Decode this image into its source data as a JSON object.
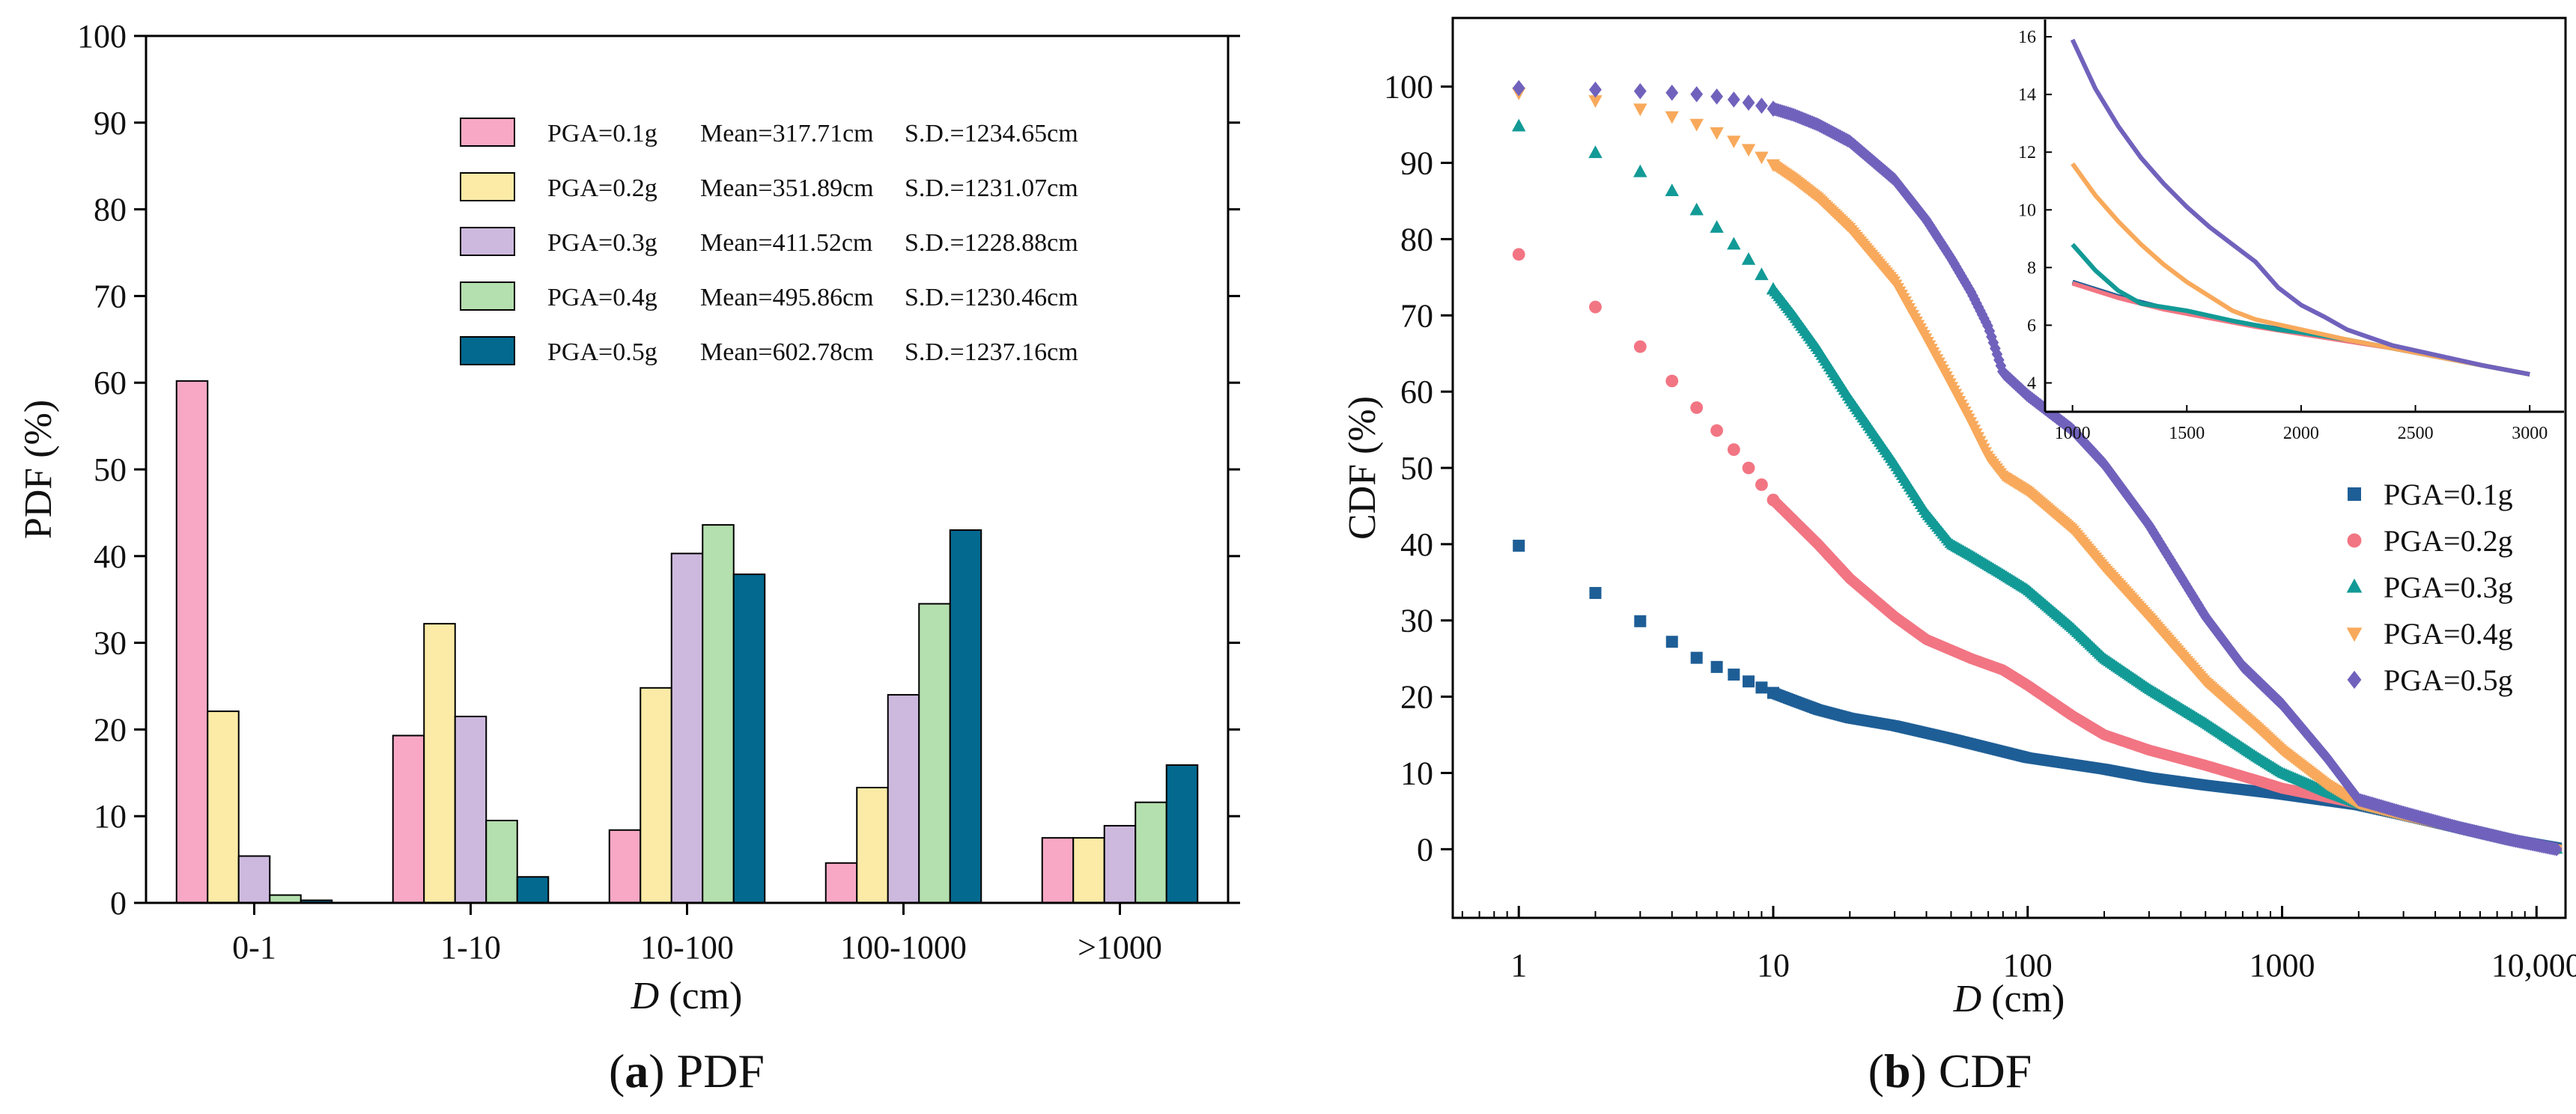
{
  "chart_data": [
    {
      "type": "bar",
      "panel": "a",
      "caption_letter": "a",
      "caption_text": "PDF",
      "ylabel": "PDF (%)",
      "xlabel_var": "D",
      "xlabel_unit": "(cm)",
      "ylim": [
        0,
        100
      ],
      "yticks": [
        0,
        10,
        20,
        30,
        40,
        50,
        60,
        70,
        80,
        90,
        100
      ],
      "categories": [
        "0-1",
        "1-10",
        "10-100",
        "100-1000",
        ">1000"
      ],
      "series": [
        {
          "name": "PGA=0.1g",
          "mean": "Mean=317.71cm",
          "sd": "S.D.=1234.65cm",
          "color": "#F8A8C4",
          "values": [
            60.2,
            19.3,
            8.4,
            4.6,
            7.5
          ]
        },
        {
          "name": "PGA=0.2g",
          "mean": "Mean=351.89cm",
          "sd": "S.D.=1231.07cm",
          "color": "#FBEBA6",
          "values": [
            22.1,
            32.2,
            24.8,
            13.3,
            7.5
          ]
        },
        {
          "name": "PGA=0.3g",
          "mean": "Mean=411.52cm",
          "sd": "S.D.=1228.88cm",
          "color": "#CDB9DE",
          "values": [
            5.4,
            21.5,
            40.3,
            24.0,
            8.9
          ]
        },
        {
          "name": "PGA=0.4g",
          "mean": "Mean=495.86cm",
          "sd": "S.D.=1230.46cm",
          "color": "#B4DFAE",
          "values": [
            0.9,
            9.5,
            43.6,
            34.5,
            11.6
          ]
        },
        {
          "name": "PGA=0.5g",
          "mean": "Mean=602.78cm",
          "sd": "S.D.=1237.16cm",
          "color": "#03698F",
          "values": [
            0.3,
            3.0,
            37.9,
            43.0,
            15.9
          ]
        }
      ]
    },
    {
      "type": "scatter",
      "panel": "b",
      "caption_letter": "b",
      "caption_text": "CDF",
      "ylabel": "CDF (%)",
      "xlabel_var": "D",
      "xlabel_unit": "(cm)",
      "xscale": "log",
      "xlim": [
        0.55,
        13000
      ],
      "ylim": [
        -9,
        109
      ],
      "yticks": [
        0,
        10,
        20,
        30,
        40,
        50,
        60,
        70,
        80,
        90,
        100
      ],
      "xticks": [
        {
          "value": 1,
          "label": "1"
        },
        {
          "value": 10,
          "label": "10"
        },
        {
          "value": 100,
          "label": "100"
        },
        {
          "value": 1000,
          "label": "1000"
        },
        {
          "value": 10000,
          "label": "10,000"
        }
      ],
      "legend_position": "lower-right",
      "series": [
        {
          "name": "PGA=0.1g",
          "marker": "square",
          "color": "#1E5E96",
          "discrete": [
            [
              1,
              39.8
            ],
            [
              2,
              33.6
            ],
            [
              3,
              29.9
            ],
            [
              4,
              27.2
            ],
            [
              5,
              25.1
            ],
            [
              6,
              23.9
            ],
            [
              7,
              22.9
            ],
            [
              8,
              22.0
            ],
            [
              9,
              21.2
            ],
            [
              10,
              20.5
            ]
          ],
          "curve": [
            [
              10,
              20.5
            ],
            [
              12,
              19.5
            ],
            [
              15,
              18.3
            ],
            [
              20,
              17.2
            ],
            [
              30,
              16.2
            ],
            [
              50,
              14.5
            ],
            [
              100,
              12.0
            ],
            [
              200,
              10.5
            ],
            [
              300,
              9.4
            ],
            [
              500,
              8.4
            ],
            [
              1000,
              7.2
            ],
            [
              2000,
              5.8
            ],
            [
              3000,
              4.5
            ],
            [
              5000,
              2.8
            ],
            [
              8000,
              1.2
            ],
            [
              12000,
              0.2
            ]
          ]
        },
        {
          "name": "PGA=0.2g",
          "marker": "circle",
          "color": "#F27583",
          "discrete": [
            [
              1,
              78.0
            ],
            [
              2,
              71.1
            ],
            [
              3,
              65.9
            ],
            [
              4,
              61.4
            ],
            [
              5,
              57.9
            ],
            [
              6,
              54.9
            ],
            [
              7,
              52.4
            ],
            [
              8,
              50.0
            ],
            [
              9,
              47.8
            ],
            [
              10,
              45.8
            ]
          ],
          "curve": [
            [
              10,
              45.8
            ],
            [
              15,
              40.0
            ],
            [
              20,
              35.5
            ],
            [
              30,
              30.5
            ],
            [
              40,
              27.5
            ],
            [
              60,
              25.0
            ],
            [
              80,
              23.5
            ],
            [
              100,
              21.5
            ],
            [
              150,
              17.5
            ],
            [
              200,
              15.0
            ],
            [
              300,
              13.0
            ],
            [
              500,
              11.0
            ],
            [
              800,
              9.0
            ],
            [
              1000,
              8.0
            ],
            [
              2000,
              6.0
            ],
            [
              3000,
              4.5
            ],
            [
              5000,
              2.8
            ],
            [
              8000,
              1.2
            ],
            [
              12000,
              0.0
            ]
          ]
        },
        {
          "name": "PGA=0.3g",
          "marker": "triangle-up",
          "color": "#129A96",
          "discrete": [
            [
              1,
              94.8
            ],
            [
              2,
              91.3
            ],
            [
              3,
              88.8
            ],
            [
              4,
              86.3
            ],
            [
              5,
              83.8
            ],
            [
              6,
              81.5
            ],
            [
              7,
              79.3
            ],
            [
              8,
              77.3
            ],
            [
              9,
              75.3
            ],
            [
              10,
              73.4
            ]
          ],
          "curve": [
            [
              10,
              73.4
            ],
            [
              12,
              70.0
            ],
            [
              15,
              65.5
            ],
            [
              20,
              59.0
            ],
            [
              30,
              50.5
            ],
            [
              40,
              44.0
            ],
            [
              50,
              40.0
            ],
            [
              60,
              38.5
            ],
            [
              80,
              36.0
            ],
            [
              100,
              34.0
            ],
            [
              150,
              29.0
            ],
            [
              200,
              25.0
            ],
            [
              300,
              21.0
            ],
            [
              500,
              16.5
            ],
            [
              800,
              12.0
            ],
            [
              1000,
              10.0
            ],
            [
              1500,
              7.5
            ],
            [
              2000,
              6.0
            ],
            [
              3000,
              4.5
            ],
            [
              5000,
              2.8
            ],
            [
              8000,
              1.2
            ],
            [
              12000,
              0.0
            ]
          ]
        },
        {
          "name": "PGA=0.4g",
          "marker": "triangle-down",
          "color": "#F8A95B",
          "discrete": [
            [
              1,
              99.2
            ],
            [
              2,
              98.2
            ],
            [
              3,
              97.1
            ],
            [
              4,
              96.1
            ],
            [
              5,
              95.1
            ],
            [
              6,
              94.0
            ],
            [
              7,
              92.9
            ],
            [
              8,
              91.8
            ],
            [
              9,
              90.8
            ],
            [
              10,
              89.8
            ]
          ],
          "curve": [
            [
              10,
              89.8
            ],
            [
              12,
              88.0
            ],
            [
              15,
              85.5
            ],
            [
              20,
              81.5
            ],
            [
              30,
              74.5
            ],
            [
              40,
              67.0
            ],
            [
              50,
              61.0
            ],
            [
              60,
              56.0
            ],
            [
              70,
              51.5
            ],
            [
              80,
              49.0
            ],
            [
              100,
              47.0
            ],
            [
              150,
              42.0
            ],
            [
              200,
              37.0
            ],
            [
              300,
              30.5
            ],
            [
              500,
              22.0
            ],
            [
              800,
              16.0
            ],
            [
              1000,
              13.0
            ],
            [
              1500,
              8.5
            ],
            [
              2000,
              6.0
            ],
            [
              3000,
              4.5
            ],
            [
              5000,
              2.8
            ],
            [
              8000,
              1.2
            ],
            [
              12000,
              0.0
            ]
          ]
        },
        {
          "name": "PGA=0.5g",
          "marker": "diamond",
          "color": "#7062BC",
          "discrete": [
            [
              1,
              99.8
            ],
            [
              2,
              99.6
            ],
            [
              3,
              99.4
            ],
            [
              4,
              99.2
            ],
            [
              5,
              99.0
            ],
            [
              6,
              98.7
            ],
            [
              7,
              98.3
            ],
            [
              8,
              97.9
            ],
            [
              9,
              97.5
            ],
            [
              10,
              97.1
            ]
          ],
          "curve": [
            [
              10,
              97.1
            ],
            [
              12,
              96.3
            ],
            [
              15,
              95.0
            ],
            [
              20,
              92.8
            ],
            [
              30,
              87.8
            ],
            [
              40,
              82.5
            ],
            [
              50,
              77.5
            ],
            [
              60,
              73.0
            ],
            [
              70,
              68.5
            ],
            [
              80,
              62.5
            ],
            [
              100,
              59.5
            ],
            [
              150,
              55.0
            ],
            [
              200,
              50.5
            ],
            [
              300,
              42.5
            ],
            [
              500,
              30.5
            ],
            [
              700,
              24.0
            ],
            [
              1000,
              19.0
            ],
            [
              1500,
              12.0
            ],
            [
              2000,
              6.5
            ],
            [
              3000,
              4.8
            ],
            [
              5000,
              2.8
            ],
            [
              8000,
              1.2
            ],
            [
              12000,
              0.0
            ]
          ]
        }
      ],
      "inset": {
        "xscale": "linear",
        "xlim": [
          880,
          3150
        ],
        "ylim": [
          3.0,
          16.6
        ],
        "xticks": [
          1000,
          1500,
          2000,
          2500,
          3000
        ],
        "yticks": [
          4,
          6,
          8,
          10,
          12,
          14,
          16
        ],
        "series": [
          {
            "name": "PGA=0.1g",
            "color": "#1E5E96",
            "points": [
              [
                1000,
                7.5
              ],
              [
                1200,
                7.0
              ],
              [
                1400,
                6.6
              ],
              [
                1600,
                6.3
              ],
              [
                1800,
                6.0
              ],
              [
                2000,
                5.75
              ],
              [
                2200,
                5.5
              ],
              [
                2400,
                5.2
              ],
              [
                2600,
                4.9
              ],
              [
                2800,
                4.6
              ],
              [
                3000,
                4.3
              ]
            ]
          },
          {
            "name": "PGA=0.2g",
            "color": "#F27583",
            "points": [
              [
                1000,
                7.45
              ],
              [
                1200,
                6.95
              ],
              [
                1400,
                6.55
              ],
              [
                1600,
                6.25
              ],
              [
                1800,
                5.95
              ],
              [
                2000,
                5.7
              ],
              [
                2200,
                5.45
              ],
              [
                2400,
                5.2
              ],
              [
                2600,
                4.9
              ],
              [
                2800,
                4.6
              ],
              [
                3000,
                4.3
              ]
            ]
          },
          {
            "name": "PGA=0.3g",
            "color": "#129A96",
            "points": [
              [
                1000,
                8.8
              ],
              [
                1100,
                7.9
              ],
              [
                1200,
                7.2
              ],
              [
                1300,
                6.75
              ],
              [
                1500,
                6.5
              ],
              [
                1700,
                6.15
              ],
              [
                1900,
                5.85
              ],
              [
                2000,
                5.75
              ],
              [
                2200,
                5.5
              ],
              [
                2400,
                5.2
              ],
              [
                2600,
                4.9
              ],
              [
                2800,
                4.6
              ],
              [
                3000,
                4.3
              ]
            ]
          },
          {
            "name": "PGA=0.4g",
            "color": "#F8A95B",
            "points": [
              [
                1000,
                11.6
              ],
              [
                1100,
                10.5
              ],
              [
                1200,
                9.6
              ],
              [
                1300,
                8.8
              ],
              [
                1400,
                8.1
              ],
              [
                1500,
                7.5
              ],
              [
                1600,
                7.0
              ],
              [
                1700,
                6.5
              ],
              [
                1800,
                6.2
              ],
              [
                2000,
                5.85
              ],
              [
                2200,
                5.5
              ],
              [
                2400,
                5.2
              ],
              [
                2600,
                4.9
              ],
              [
                2800,
                4.6
              ],
              [
                3000,
                4.3
              ]
            ]
          },
          {
            "name": "PGA=0.5g",
            "color": "#7062BC",
            "points": [
              [
                1000,
                15.9
              ],
              [
                1100,
                14.2
              ],
              [
                1200,
                12.9
              ],
              [
                1300,
                11.8
              ],
              [
                1400,
                10.9
              ],
              [
                1500,
                10.1
              ],
              [
                1600,
                9.4
              ],
              [
                1700,
                8.8
              ],
              [
                1800,
                8.2
              ],
              [
                1900,
                7.3
              ],
              [
                2000,
                6.7
              ],
              [
                2100,
                6.3
              ],
              [
                2200,
                5.85
              ],
              [
                2400,
                5.3
              ],
              [
                2600,
                4.95
              ],
              [
                2800,
                4.6
              ],
              [
                3000,
                4.3
              ]
            ]
          }
        ]
      }
    }
  ]
}
